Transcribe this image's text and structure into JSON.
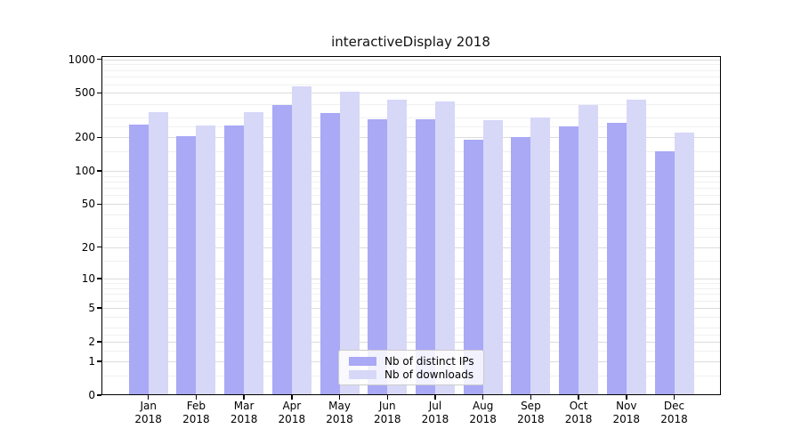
{
  "chart_data": {
    "type": "bar",
    "title": "interactiveDisplay 2018",
    "categories": [
      "Jan 2018",
      "Feb 2018",
      "Mar 2018",
      "Apr 2018",
      "May 2018",
      "Jun 2018",
      "Jul 2018",
      "Aug 2018",
      "Sep 2018",
      "Oct 2018",
      "Nov 2018",
      "Dec 2018"
    ],
    "series": [
      {
        "name": "Nb of distinct IPs",
        "color": "#a9a9f6",
        "values": [
          259,
          205,
          254,
          390,
          328,
          290,
          290,
          189,
          201,
          252,
          271,
          149
        ]
      },
      {
        "name": "Nb of downloads",
        "color": "#d7d7f8",
        "values": [
          334,
          254,
          334,
          571,
          511,
          438,
          417,
          285,
          300,
          388,
          433,
          220
        ]
      }
    ],
    "xlabel": "",
    "ylabel": "",
    "yscale": "log1p",
    "ylim": [
      0,
      1070
    ],
    "yticks": [
      0,
      1,
      2,
      5,
      10,
      20,
      50,
      100,
      200,
      500,
      1000
    ],
    "yticks_minor": [
      0.5,
      1.5,
      2.5,
      3,
      4,
      6,
      7,
      8,
      9,
      15,
      25,
      30,
      40,
      60,
      70,
      80,
      90,
      150,
      250,
      300,
      400,
      600,
      700,
      800,
      900
    ],
    "grid": true,
    "legend_position": "lower center",
    "bar_grouping": "grouped"
  }
}
